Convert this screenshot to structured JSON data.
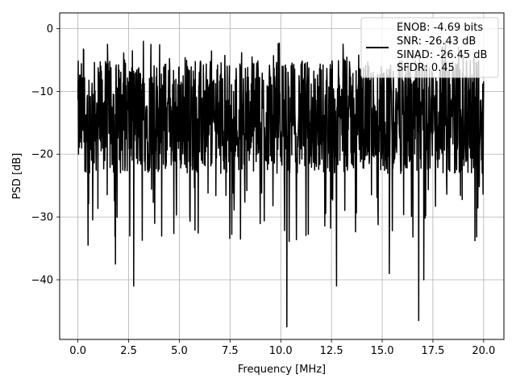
{
  "chart_data": {
    "type": "line",
    "title": "",
    "xlabel": "Frequency [MHz]",
    "ylabel": "PSD [dB]",
    "xlim": [
      -0.9,
      21.0
    ],
    "ylim": [
      -49.5,
      2.5
    ],
    "xticks": [
      0.0,
      2.5,
      5.0,
      7.5,
      10.0,
      12.5,
      15.0,
      17.5,
      20.0
    ],
    "xtick_labels": [
      "0.0",
      "2.5",
      "5.0",
      "7.5",
      "10.0",
      "12.5",
      "15.0",
      "17.5",
      "20.0"
    ],
    "yticks": [
      0,
      -10,
      -20,
      -30,
      -40
    ],
    "ytick_labels": [
      "0",
      "−10",
      "−20",
      "−30",
      "−40"
    ],
    "grid": true,
    "legend_position": "top-right",
    "legend_lines": [
      "ENOB: -4.69 bits",
      "SNR: -26.43 dB",
      "SINAD: -26.45 dB",
      "SFDR: 0.45"
    ],
    "series": [
      {
        "color": "#000000",
        "x_range": [
          0.0,
          20.0
        ],
        "approx_level_db": -15,
        "approx_max_db": -0.5,
        "approx_min_db": -47.5,
        "notable_dips": [
          {
            "x": 0.5,
            "y": -34.5
          },
          {
            "x": 1.85,
            "y": -37.5
          },
          {
            "x": 2.75,
            "y": -41.0
          },
          {
            "x": 10.3,
            "y": -47.5
          },
          {
            "x": 12.75,
            "y": -41.0
          },
          {
            "x": 15.35,
            "y": -39.0
          },
          {
            "x": 16.8,
            "y": -46.5
          },
          {
            "x": 17.05,
            "y": -40.0
          }
        ]
      }
    ]
  }
}
